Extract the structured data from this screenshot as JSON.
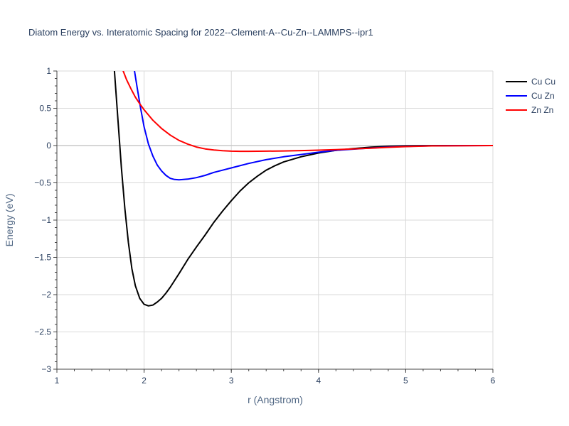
{
  "chart_data": {
    "type": "line",
    "title": "Diatom Energy vs. Interatomic Spacing for 2022--Clement-A--Cu-Zn--LAMMPS--ipr1",
    "xlabel": "r (Angstrom)",
    "ylabel": "Energy (eV)",
    "xlim": [
      1,
      6
    ],
    "ylim": [
      -3,
      1
    ],
    "xticks": [
      1,
      2,
      3,
      4,
      5,
      6
    ],
    "yticks": [
      1,
      0.5,
      0,
      -0.5,
      -1,
      -1.5,
      -2,
      -2.5,
      -3
    ],
    "xtick_labels": [
      "1",
      "2",
      "3",
      "4",
      "5",
      "6"
    ],
    "ytick_labels": [
      "1",
      "0.5",
      "0",
      "−0.5",
      "−1",
      "−1.5",
      "−2",
      "−2.5",
      "−3"
    ],
    "grid": true,
    "legend_position": "top-right",
    "series": [
      {
        "name": "Cu Cu",
        "color": "#000000",
        "x": [
          1.66,
          1.7,
          1.74,
          1.78,
          1.82,
          1.86,
          1.9,
          1.95,
          2.0,
          2.05,
          2.1,
          2.15,
          2.2,
          2.25,
          2.3,
          2.4,
          2.5,
          2.6,
          2.7,
          2.8,
          2.9,
          3.0,
          3.1,
          3.2,
          3.3,
          3.4,
          3.5,
          3.6,
          3.8,
          4.0,
          4.2,
          4.4,
          4.6,
          4.8,
          5.0,
          5.2,
          5.5,
          6.0
        ],
        "y": [
          1.0,
          0.35,
          -0.3,
          -0.85,
          -1.3,
          -1.65,
          -1.88,
          -2.05,
          -2.13,
          -2.15,
          -2.14,
          -2.1,
          -2.05,
          -1.98,
          -1.9,
          -1.72,
          -1.53,
          -1.36,
          -1.2,
          -1.03,
          -0.88,
          -0.74,
          -0.61,
          -0.5,
          -0.41,
          -0.33,
          -0.27,
          -0.22,
          -0.15,
          -0.1,
          -0.065,
          -0.04,
          -0.022,
          -0.01,
          -0.004,
          -0.001,
          0.0,
          0.0
        ]
      },
      {
        "name": "Cu Zn",
        "color": "#0000ff",
        "x": [
          1.89,
          1.92,
          1.96,
          2.0,
          2.05,
          2.1,
          2.15,
          2.2,
          2.25,
          2.3,
          2.35,
          2.4,
          2.45,
          2.5,
          2.6,
          2.7,
          2.8,
          2.9,
          3.0,
          3.2,
          3.4,
          3.6,
          3.8,
          4.0,
          4.2,
          4.5,
          4.8,
          5.0,
          5.3,
          5.6,
          6.0
        ],
        "y": [
          1.0,
          0.78,
          0.5,
          0.25,
          0.02,
          -0.14,
          -0.26,
          -0.34,
          -0.4,
          -0.44,
          -0.455,
          -0.46,
          -0.455,
          -0.45,
          -0.43,
          -0.4,
          -0.36,
          -0.33,
          -0.3,
          -0.24,
          -0.19,
          -0.15,
          -0.12,
          -0.09,
          -0.065,
          -0.04,
          -0.02,
          -0.012,
          -0.004,
          -0.001,
          0.0
        ]
      },
      {
        "name": "Zn Zn",
        "color": "#ff0000",
        "x": [
          1.76,
          1.8,
          1.85,
          1.9,
          1.95,
          2.0,
          2.05,
          2.1,
          2.2,
          2.3,
          2.4,
          2.5,
          2.6,
          2.7,
          2.8,
          2.9,
          3.0,
          3.1,
          3.2,
          3.4,
          3.6,
          3.8,
          4.0,
          4.2,
          4.4,
          4.6,
          4.8,
          5.0,
          5.3,
          6.0
        ],
        "y": [
          1.0,
          0.88,
          0.76,
          0.65,
          0.56,
          0.48,
          0.41,
          0.34,
          0.23,
          0.14,
          0.07,
          0.02,
          -0.02,
          -0.045,
          -0.06,
          -0.07,
          -0.075,
          -0.077,
          -0.077,
          -0.075,
          -0.072,
          -0.068,
          -0.062,
          -0.055,
          -0.045,
          -0.035,
          -0.024,
          -0.014,
          -0.005,
          0.0
        ]
      }
    ]
  }
}
